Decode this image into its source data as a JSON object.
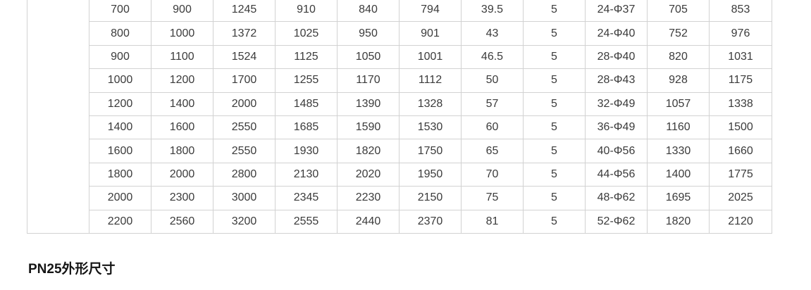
{
  "heading": {
    "text": "PN25外形尺寸"
  },
  "table": {
    "spanner_cell_text": "",
    "columns_count": 11,
    "colors": {
      "border": "#d2d2d2",
      "text": "#3b3b3b",
      "background": "#ffffff"
    },
    "rows": [
      [
        "700",
        "900",
        "1245",
        "910",
        "840",
        "794",
        "39.5",
        "5",
        "24-Φ37",
        "705",
        "853"
      ],
      [
        "800",
        "1000",
        "1372",
        "1025",
        "950",
        "901",
        "43",
        "5",
        "24-Φ40",
        "752",
        "976"
      ],
      [
        "900",
        "1100",
        "1524",
        "1125",
        "1050",
        "1001",
        "46.5",
        "5",
        "28-Φ40",
        "820",
        "1031"
      ],
      [
        "1000",
        "1200",
        "1700",
        "1255",
        "1170",
        "1112",
        "50",
        "5",
        "28-Φ43",
        "928",
        "1175"
      ],
      [
        "1200",
        "1400",
        "2000",
        "1485",
        "1390",
        "1328",
        "57",
        "5",
        "32-Φ49",
        "1057",
        "1338"
      ],
      [
        "1400",
        "1600",
        "2550",
        "1685",
        "1590",
        "1530",
        "60",
        "5",
        "36-Φ49",
        "1160",
        "1500"
      ],
      [
        "1600",
        "1800",
        "2550",
        "1930",
        "1820",
        "1750",
        "65",
        "5",
        "40-Φ56",
        "1330",
        "1660"
      ],
      [
        "1800",
        "2000",
        "2800",
        "2130",
        "2020",
        "1950",
        "70",
        "5",
        "44-Φ56",
        "1400",
        "1775"
      ],
      [
        "2000",
        "2300",
        "3000",
        "2345",
        "2230",
        "2150",
        "75",
        "5",
        "48-Φ62",
        "1695",
        "2025"
      ],
      [
        "2200",
        "2560",
        "3200",
        "2555",
        "2440",
        "2370",
        "81",
        "5",
        "52-Φ62",
        "1820",
        "2120"
      ]
    ]
  }
}
